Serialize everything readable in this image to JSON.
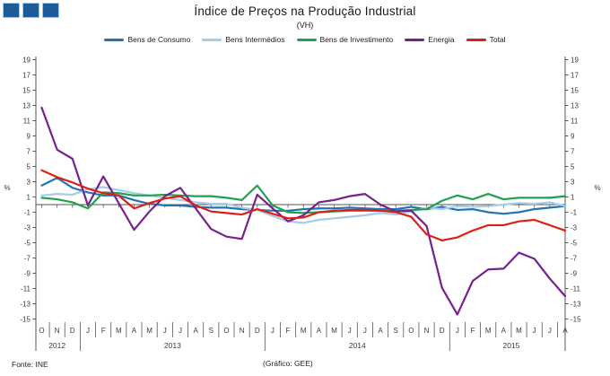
{
  "logo": {
    "count": 3,
    "color": "#1B5C9B",
    "border_color": "#AFC9E3"
  },
  "header": {
    "title": "Índice de Preços na Produção Industrial",
    "subtitle": "(VH)"
  },
  "footer": {
    "source": "Fonte: INE",
    "credit": "(Gráfico: GEE)"
  },
  "chart_data": {
    "type": "line",
    "title": "Índice de Preços na Produção Industrial",
    "subtitle": "(VH)",
    "y_unit": "%",
    "ylim": [
      -15,
      19
    ],
    "yticks": [
      19,
      17,
      15,
      13,
      11,
      9,
      7,
      5,
      3,
      1,
      -1,
      -3,
      -5,
      -7,
      -9,
      -11,
      -13,
      -15
    ],
    "grid": false,
    "legend_position": "top",
    "axis_color": "#555555",
    "text_color": "#3A3A3A",
    "months": [
      "O",
      "N",
      "D",
      "J",
      "F",
      "M",
      "A",
      "M",
      "J",
      "J",
      "A",
      "S",
      "O",
      "N",
      "D",
      "J",
      "F",
      "M",
      "A",
      "M",
      "J",
      "J",
      "A",
      "S",
      "O",
      "N",
      "D",
      "J",
      "F",
      "M",
      "A",
      "M",
      "J",
      "J",
      "A"
    ],
    "years": [
      {
        "label": "2012",
        "from": 0,
        "to": 2
      },
      {
        "label": "2013",
        "from": 3,
        "to": 14
      },
      {
        "label": "2014",
        "from": 15,
        "to": 26
      },
      {
        "label": "2015",
        "from": 27,
        "to": 34
      }
    ],
    "year_breaks": [
      3,
      15,
      27
    ],
    "series": [
      {
        "name": "Bens de Consumo",
        "color": "#2273B5",
        "values": [
          2.5,
          3.5,
          2.2,
          1.6,
          1.2,
          1.2,
          0.6,
          0.1,
          -0.1,
          -0.1,
          -0.3,
          -0.4,
          -0.4,
          -0.6,
          -0.7,
          -0.8,
          -0.8,
          -0.6,
          -0.5,
          -0.5,
          -0.4,
          -0.5,
          -0.6,
          -0.6,
          -0.3,
          -0.6,
          -0.3,
          -0.7,
          -0.6,
          -1.0,
          -1.2,
          -1.0,
          -0.6,
          -0.4,
          -0.2
        ]
      },
      {
        "name": "Bens Intermédios",
        "color": "#A6CCEA",
        "values": [
          1.2,
          1.4,
          1.3,
          2.0,
          2.3,
          1.9,
          1.5,
          1.2,
          0.9,
          0.6,
          0.3,
          0.1,
          0.1,
          -0.4,
          -0.7,
          -1.5,
          -2.2,
          -2.4,
          -2.0,
          -1.8,
          -1.6,
          -1.4,
          -1.1,
          -1.3,
          -0.9,
          -0.4,
          -0.6,
          -0.2,
          -0.3,
          -0.2,
          0.0,
          0.2,
          0.1,
          0.3,
          -0.2
        ]
      },
      {
        "name": "Bens de Investimento",
        "color": "#22A14B",
        "values": [
          0.9,
          0.7,
          0.3,
          -0.5,
          1.6,
          1.5,
          1.2,
          1.2,
          1.3,
          1.2,
          1.1,
          1.1,
          0.9,
          0.6,
          2.5,
          -0.1,
          -1.0,
          -1.1,
          -1.0,
          -0.9,
          -0.8,
          -0.8,
          -0.8,
          -0.8,
          -0.7,
          -0.6,
          0.5,
          1.2,
          0.7,
          1.4,
          0.7,
          0.9,
          0.9,
          0.9,
          1.1
        ]
      },
      {
        "name": "Energia",
        "color": "#76218F",
        "values": [
          12.7,
          7.2,
          6.0,
          -0.1,
          3.7,
          0.2,
          -3.3,
          -0.9,
          1.1,
          2.2,
          -0.5,
          -3.2,
          -4.2,
          -4.5,
          1.3,
          -0.5,
          -2.2,
          -1.4,
          0.3,
          0.6,
          1.1,
          1.4,
          0.0,
          -0.9,
          -0.8,
          -2.8,
          -10.9,
          -14.4,
          -10.0,
          -8.5,
          -8.4,
          -6.3,
          -7.1,
          -9.7,
          -12.0
        ]
      },
      {
        "name": "Total",
        "color": "#DD2016",
        "values": [
          4.5,
          3.6,
          2.9,
          2.1,
          1.5,
          1.2,
          -0.5,
          0.2,
          0.8,
          1.1,
          -0.1,
          -0.9,
          -1.1,
          -1.3,
          -0.6,
          -1.2,
          -1.8,
          -1.7,
          -1.0,
          -0.8,
          -0.7,
          -0.7,
          -0.8,
          -1.0,
          -1.6,
          -3.9,
          -4.7,
          -4.3,
          -3.4,
          -2.7,
          -2.7,
          -2.2,
          -2.0,
          -2.7,
          -3.4
        ]
      }
    ]
  }
}
